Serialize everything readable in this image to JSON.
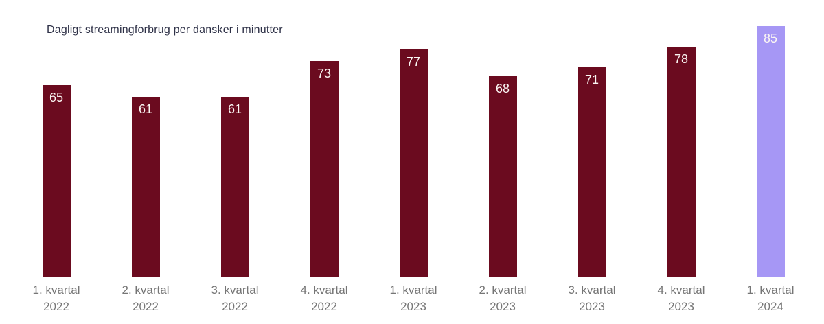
{
  "title": "Dagligt streamingforbrug per dansker i minutter",
  "chart_data": {
    "type": "bar",
    "title": "Dagligt streamingforbrug per dansker i minutter",
    "categories": [
      "1. kvartal 2022",
      "2. kvartal 2022",
      "3. kvartal 2022",
      "4. kvartal 2022",
      "1. kvartal 2023",
      "2. kvartal 2023",
      "3. kvartal 2023",
      "4. kvartal 2023",
      "1. kvartal 2024"
    ],
    "values": [
      65,
      61,
      61,
      73,
      77,
      68,
      71,
      78,
      85
    ],
    "xlabel": "",
    "ylabel": "",
    "ylim": [
      0,
      94
    ],
    "grid": false,
    "legend_position": "none",
    "value_labels_shown": true,
    "bar_color": "#6b0b1f",
    "highlight_index": 8,
    "highlight_color": "#a697f5",
    "value_label_color": "#fbf6f3",
    "tick_label_color": "#767676",
    "axis_line_color": "#dadada",
    "title_color": "#2e3147"
  }
}
